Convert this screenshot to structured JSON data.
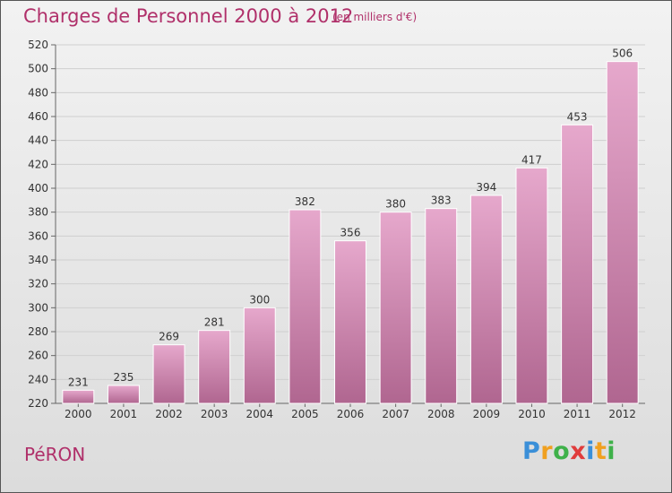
{
  "chart_data": {
    "type": "bar",
    "title": "Charges de Personnel 2000 à 2012",
    "subtitle": "(en milliers d'€)",
    "categories": [
      "2000",
      "2001",
      "2002",
      "2003",
      "2004",
      "2005",
      "2006",
      "2007",
      "2008",
      "2009",
      "2010",
      "2011",
      "2012"
    ],
    "values": [
      231,
      235,
      269,
      281,
      300,
      382,
      356,
      380,
      383,
      394,
      417,
      453,
      506
    ],
    "ylim": [
      220,
      520
    ],
    "yticks": [
      220,
      240,
      260,
      280,
      300,
      320,
      340,
      360,
      380,
      400,
      420,
      440,
      460,
      480,
      500,
      520
    ],
    "grid": true,
    "bar_color": "#cc7aa8"
  },
  "place": "PéRON",
  "logo": {
    "letters": [
      "P",
      "r",
      "o",
      "x",
      "i",
      "t",
      "i"
    ],
    "colors": [
      "#3a8fd8",
      "#f0a020",
      "#3fb14a",
      "#e03c3c",
      "#3a8fd8",
      "#f0a020",
      "#3fb14a"
    ]
  }
}
